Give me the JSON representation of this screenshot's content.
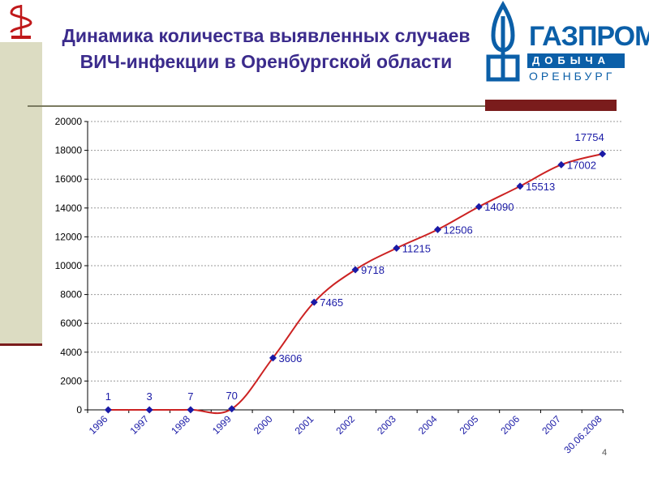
{
  "title": "Динамика количества выявленных случаев ВИЧ-инфекции в Оренбургской области",
  "logo": {
    "main": "ГАЗПРОМ",
    "sub": "ДОБЫЧА",
    "region": "ОРЕНБУРГ"
  },
  "page_number": "4",
  "colors": {
    "line": "#cc2222",
    "marker": "#1a1aa6",
    "title": "#3b2b8c",
    "accent": "#7a1c1c",
    "band": "#dcdcc2"
  },
  "chart_data": {
    "type": "line",
    "title": "",
    "xlabel": "",
    "ylabel": "",
    "categories": [
      "1996",
      "1997",
      "1998",
      "1999",
      "2000",
      "2001",
      "2002",
      "2003",
      "2004",
      "2005",
      "2006",
      "2007",
      "30.06.2008"
    ],
    "values": [
      1,
      3,
      7,
      70,
      3606,
      7465,
      9718,
      11215,
      12506,
      14090,
      15513,
      17002,
      17754
    ],
    "data_labels": [
      "1",
      "3",
      "7",
      "70",
      "3606",
      "7465",
      "9718",
      "11215",
      "12506",
      "14090",
      "15513",
      "17002",
      "17754"
    ],
    "ylim": [
      0,
      20000
    ],
    "yticks": [
      "0",
      "2000",
      "4000",
      "6000",
      "8000",
      "10000",
      "12000",
      "14000",
      "16000",
      "18000",
      "20000"
    ],
    "grid": true,
    "legend": "none"
  }
}
